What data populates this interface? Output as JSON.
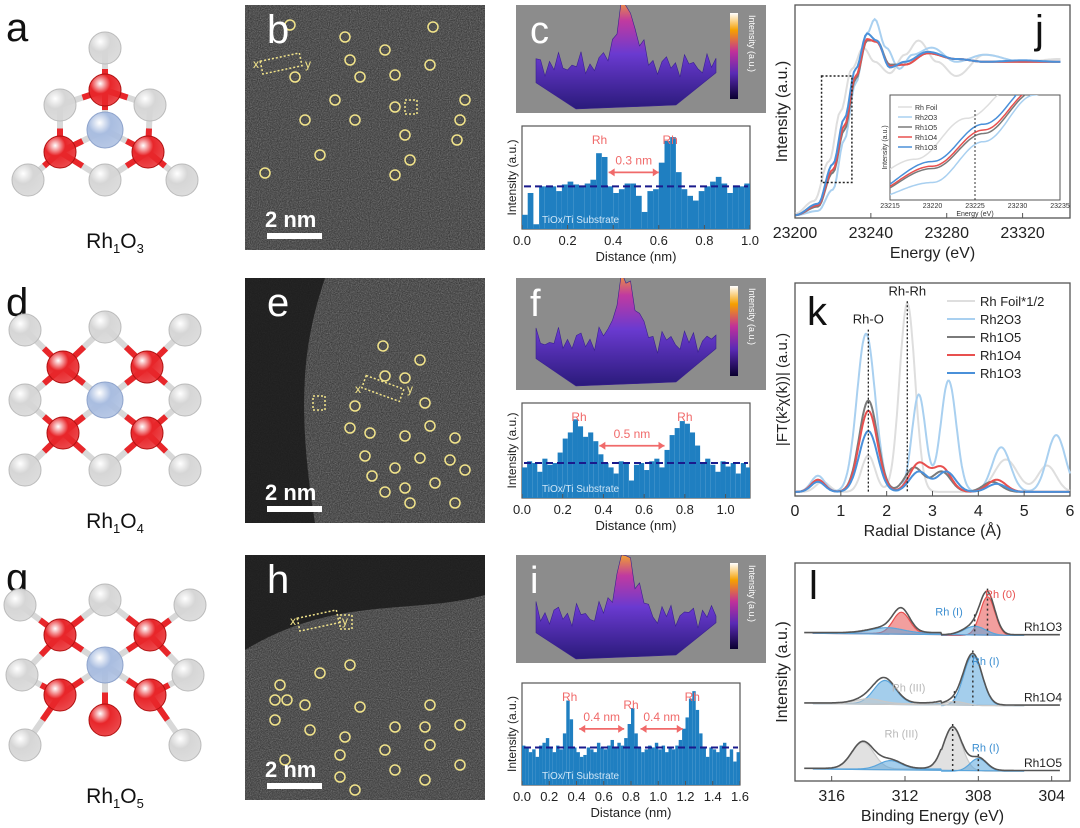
{
  "panel_labels": {
    "a": "a",
    "b": "b",
    "c": "c",
    "d": "d",
    "e": "e",
    "f": "f",
    "g": "g",
    "h": "h",
    "i": "i",
    "j": "j",
    "k": "k",
    "l": "l"
  },
  "structures": [
    {
      "formula_main": "Rh",
      "sub1": "1",
      "mid": "O",
      "sub2": "3"
    },
    {
      "formula_main": "Rh",
      "sub1": "1",
      "mid": "O",
      "sub2": "4"
    },
    {
      "formula_main": "Rh",
      "sub1": "1",
      "mid": "O",
      "sub2": "5"
    }
  ],
  "colors": {
    "rh_atom": "#a9bde0",
    "o_atom": "#e8262a",
    "support_atom": "#d6d6d6",
    "bar": "#1f7fc1",
    "substrate_line": "#1a1a8c",
    "annotation": "#f06a6a",
    "rh1o3": "#4a90d9",
    "rh1o4": "#e8504f",
    "rh1o5": "#7a7a7a",
    "rh2o3": "#a9d0f0",
    "rh_foil": "#dedede"
  },
  "stem_images": {
    "scale_bar_label": "2 nm",
    "line_marker_x": "x",
    "line_marker_y": "y"
  },
  "surface_plot": {
    "colorbar_label": "Intensity (a.u.)"
  },
  "chart_data": [
    {
      "id": "c",
      "type": "bar",
      "xlabel": "Distance (nm)",
      "ylabel": "Intensity (a.u.)",
      "xlim": [
        0,
        1.0
      ],
      "xticks": [
        "0.0",
        "0.2",
        "0.4",
        "0.6",
        "0.8",
        "1.0"
      ],
      "bin_width": 0.025,
      "values": [
        0.15,
        0.38,
        0.05,
        0.45,
        0.45,
        0.45,
        0.4,
        0.47,
        0.5,
        0.47,
        0.45,
        0.48,
        0.52,
        0.8,
        0.76,
        0.45,
        0.38,
        0.42,
        0.48,
        0.48,
        0.35,
        0.18,
        0.4,
        0.42,
        0.7,
        0.93,
        0.97,
        0.6,
        0.42,
        0.35,
        0.3,
        0.4,
        0.45,
        0.5,
        0.55,
        0.48,
        0.38,
        0.46,
        0.45,
        0.48
      ],
      "substrate_level": 0.45,
      "substrate_label": "TiOx/Ti Substrate",
      "peak_label": "Rh",
      "peaks": [
        0.34,
        0.65
      ],
      "distances": [
        {
          "from": 0.38,
          "to": 0.6,
          "label": "0.3 nm"
        }
      ]
    },
    {
      "id": "f",
      "type": "bar",
      "xlabel": "Distance (nm)",
      "ylabel": "Intensity (a.u.)",
      "xlim": [
        0,
        1.12
      ],
      "xticks": [
        "0.0",
        "0.2",
        "0.4",
        "0.6",
        "0.8",
        "1.0"
      ],
      "bin_width": 0.025,
      "values": [
        0.35,
        0.42,
        0.4,
        0.3,
        0.45,
        0.38,
        0.4,
        0.52,
        0.68,
        0.75,
        0.9,
        0.82,
        0.7,
        0.75,
        0.65,
        0.5,
        0.4,
        0.35,
        0.28,
        0.42,
        0.4,
        0.2,
        0.38,
        0.4,
        0.32,
        0.42,
        0.45,
        0.35,
        0.55,
        0.72,
        0.8,
        0.88,
        0.85,
        0.75,
        0.6,
        0.4,
        0.45,
        0.38,
        0.3,
        0.42,
        0.36,
        0.4,
        0.28,
        0.4,
        0.35
      ],
      "substrate_level": 0.4,
      "substrate_label": "TiOx/Ti Substrate",
      "peak_label": "Rh",
      "peaks": [
        0.28,
        0.8
      ],
      "distances": [
        {
          "from": 0.38,
          "to": 0.7,
          "label": "0.5 nm"
        }
      ]
    },
    {
      "id": "i",
      "type": "bar",
      "xlabel": "Distance (nm)",
      "ylabel": "Intensity (a.u.)",
      "xlim": [
        0,
        1.6
      ],
      "xticks": [
        "0.0",
        "0.2",
        "0.4",
        "0.6",
        "0.8",
        "1.0",
        "1.2",
        "1.4",
        "1.6"
      ],
      "bin_width": 0.025,
      "values": [
        0.42,
        0.4,
        0.35,
        0.38,
        0.3,
        0.42,
        0.45,
        0.5,
        0.4,
        0.35,
        0.42,
        0.38,
        0.55,
        0.9,
        0.7,
        0.4,
        0.35,
        0.3,
        0.32,
        0.4,
        0.38,
        0.35,
        0.45,
        0.4,
        0.38,
        0.42,
        0.48,
        0.4,
        0.45,
        0.42,
        0.5,
        0.65,
        0.82,
        0.55,
        0.4,
        0.35,
        0.38,
        0.42,
        0.4,
        0.45,
        0.38,
        0.42,
        0.35,
        0.4,
        0.38,
        0.42,
        0.48,
        0.6,
        0.72,
        0.92,
        1.0,
        0.8,
        0.55,
        0.4,
        0.3,
        0.4,
        0.38,
        0.35,
        0.42,
        0.45,
        0.3,
        0.38,
        0.25,
        0.35
      ],
      "substrate_level": 0.4,
      "substrate_label": "TiOx/Ti Substrate",
      "peak_label": "Rh",
      "peaks": [
        0.35,
        0.8,
        1.25
      ],
      "distances": [
        {
          "from": 0.42,
          "to": 0.75,
          "label": "0.4 nm"
        },
        {
          "from": 0.87,
          "to": 1.18,
          "label": "0.4 nm"
        }
      ]
    },
    {
      "id": "j",
      "type": "line",
      "xlabel": "Energy (eV)",
      "ylabel": "Intensity (a.u.)",
      "xlim": [
        23200,
        23345
      ],
      "ylim": [
        0,
        1.5
      ],
      "xticks": [
        23200,
        23240,
        23280,
        23320
      ],
      "series": [
        {
          "name": "Rh Foil",
          "color": "#dedede",
          "points": [
            [
              23200,
              0.03
            ],
            [
              23210,
              0.12
            ],
            [
              23218,
              0.4
            ],
            [
              23224,
              0.75
            ],
            [
              23230,
              1.05
            ],
            [
              23236,
              1.2
            ],
            [
              23242,
              1.1
            ],
            [
              23250,
              1.02
            ],
            [
              23258,
              1.15
            ],
            [
              23265,
              1.25
            ],
            [
              23275,
              1.1
            ],
            [
              23285,
              1.0
            ],
            [
              23300,
              1.15
            ],
            [
              23320,
              1.1
            ],
            [
              23340,
              1.12
            ]
          ]
        },
        {
          "name": "Rh2O3",
          "color": "#a9d0f0",
          "points": [
            [
              23200,
              0.02
            ],
            [
              23212,
              0.05
            ],
            [
              23220,
              0.2
            ],
            [
              23226,
              0.55
            ],
            [
              23232,
              0.95
            ],
            [
              23238,
              1.3
            ],
            [
              23242,
              1.4
            ],
            [
              23248,
              1.2
            ],
            [
              23255,
              1.05
            ],
            [
              23262,
              1.15
            ],
            [
              23272,
              1.2
            ],
            [
              23285,
              1.1
            ],
            [
              23300,
              1.15
            ],
            [
              23320,
              1.1
            ],
            [
              23340,
              1.1
            ]
          ]
        },
        {
          "name": "Rh1O5",
          "color": "#7a7a7a",
          "points": [
            [
              23200,
              0.02
            ],
            [
              23212,
              0.08
            ],
            [
              23220,
              0.32
            ],
            [
              23226,
              0.62
            ],
            [
              23232,
              0.98
            ],
            [
              23238,
              1.25
            ],
            [
              23243,
              1.25
            ],
            [
              23250,
              1.08
            ],
            [
              23258,
              1.08
            ],
            [
              23270,
              1.16
            ],
            [
              23285,
              1.12
            ],
            [
              23300,
              1.1
            ],
            [
              23320,
              1.1
            ],
            [
              23340,
              1.1
            ]
          ]
        },
        {
          "name": "Rh1O4",
          "color": "#e8504f",
          "points": [
            [
              23200,
              0.02
            ],
            [
              23212,
              0.09
            ],
            [
              23220,
              0.34
            ],
            [
              23226,
              0.65
            ],
            [
              23232,
              1.0
            ],
            [
              23238,
              1.26
            ],
            [
              23243,
              1.24
            ],
            [
              23250,
              1.07
            ],
            [
              23258,
              1.08
            ],
            [
              23270,
              1.16
            ],
            [
              23285,
              1.12
            ],
            [
              23300,
              1.1
            ],
            [
              23320,
              1.1
            ],
            [
              23340,
              1.1
            ]
          ]
        },
        {
          "name": "Rh1O3",
          "color": "#4a90d9",
          "points": [
            [
              23200,
              0.02
            ],
            [
              23212,
              0.1
            ],
            [
              23220,
              0.38
            ],
            [
              23226,
              0.7
            ],
            [
              23232,
              1.05
            ],
            [
              23238,
              1.3
            ],
            [
              23243,
              1.25
            ],
            [
              23250,
              1.06
            ],
            [
              23258,
              1.1
            ],
            [
              23270,
              1.17
            ],
            [
              23285,
              1.12
            ],
            [
              23300,
              1.1
            ],
            [
              23320,
              1.11
            ],
            [
              23340,
              1.1
            ]
          ]
        }
      ],
      "inset": {
        "xlabel": "Energy (eV)",
        "ylabel": "Intensity (a.u.)",
        "xlim": [
          23215,
          23235
        ],
        "ylim": [
          0.05,
          0.95
        ],
        "xticks": [
          23215,
          23220,
          23225,
          23230,
          23235
        ],
        "marker_x": 23225
      }
    },
    {
      "id": "k",
      "type": "line",
      "xlabel": "Radial Distance (Å)",
      "ylabel": "|FT(k²χ(k))| (a.u.)",
      "xlim": [
        0,
        6
      ],
      "ylim": [
        0,
        1.05
      ],
      "xticks": [
        0,
        1,
        2,
        3,
        4,
        5,
        6
      ],
      "annotations": [
        {
          "label": "Rh-O",
          "x": 1.6
        },
        {
          "label": "Rh-Rh",
          "x": 2.45
        }
      ],
      "series": [
        {
          "name": "Rh Foil*1/2",
          "color": "#dedede",
          "peaks": [
            [
              2.45,
              0.93,
              0.17
            ],
            [
              1.6,
              0.18,
              0.15
            ],
            [
              0.6,
              0.05,
              0.15
            ],
            [
              4.6,
              0.16,
              0.25
            ],
            [
              5.5,
              0.13,
              0.2
            ]
          ]
        },
        {
          "name": "Rh2O3",
          "color": "#a9d0f0",
          "peaks": [
            [
              1.55,
              0.78,
              0.2
            ],
            [
              0.5,
              0.08,
              0.15
            ],
            [
              2.7,
              0.48,
              0.15
            ],
            [
              3.35,
              0.55,
              0.17
            ],
            [
              4.5,
              0.22,
              0.2
            ],
            [
              5.7,
              0.28,
              0.2
            ]
          ]
        },
        {
          "name": "Rh1O5",
          "color": "#7a7a7a",
          "peaks": [
            [
              1.6,
              0.45,
              0.2
            ],
            [
              0.5,
              0.06,
              0.15
            ],
            [
              2.6,
              0.12,
              0.2
            ],
            [
              3.2,
              0.1,
              0.2
            ],
            [
              4.3,
              0.05,
              0.2
            ]
          ]
        },
        {
          "name": "Rh1O4",
          "color": "#e8504f",
          "peaks": [
            [
              1.6,
              0.4,
              0.2
            ],
            [
              0.5,
              0.06,
              0.15
            ],
            [
              2.7,
              0.14,
              0.2
            ],
            [
              3.2,
              0.12,
              0.2
            ],
            [
              4.4,
              0.06,
              0.2
            ]
          ]
        },
        {
          "name": "Rh1O3",
          "color": "#4a90d9",
          "peaks": [
            [
              1.6,
              0.3,
              0.2
            ],
            [
              0.5,
              0.05,
              0.15
            ],
            [
              2.7,
              0.1,
              0.2
            ],
            [
              3.3,
              0.1,
              0.2
            ],
            [
              4.4,
              0.04,
              0.2
            ]
          ]
        }
      ]
    },
    {
      "id": "l",
      "type": "area",
      "xlabel": "Binding Energy (eV)",
      "ylabel": "Intensity (a.u.)",
      "xlim": [
        318,
        303
      ],
      "ylim": [
        0,
        3.1
      ],
      "xticks": [
        316,
        312,
        308,
        304
      ],
      "spectra": [
        {
          "name": "Rh1O3",
          "offset": 2.05,
          "components": [
            {
              "state": "Rh (0)",
              "color": "#e8504f",
              "peaks": [
                [
                  307.5,
                  0.55,
                  0.4
                ],
                [
                  312.2,
                  0.3,
                  0.45
                ]
              ]
            },
            {
              "state": "Rh (I)",
              "color": "#5aa5dc",
              "peaks": [
                [
                  308.2,
                  0.13,
                  0.6
                ],
                [
                  313,
                  0.08,
                  0.9
                ]
              ]
            }
          ],
          "labels": [
            {
              "text": "Rh (0)",
              "x": 306.8,
              "color": "#e8504f"
            },
            {
              "text": "Rh (I)",
              "x": 309.6,
              "color": "#3d8fd1"
            }
          ]
        },
        {
          "name": "Rh1O4",
          "offset": 1.05,
          "components": [
            {
              "state": "Rh (I)",
              "color": "#5aa5dc",
              "peaks": [
                [
                  308.3,
                  0.72,
                  0.5
                ],
                [
                  313.1,
                  0.33,
                  0.6
                ]
              ]
            },
            {
              "state": "Rh (III)",
              "color": "#c8c8c8",
              "peaks": [
                [
                  309.3,
                  0.06,
                  0.6
                ],
                [
                  314,
                  0.07,
                  0.7
                ]
              ]
            }
          ],
          "labels": [
            {
              "text": "Rh (I)",
              "x": 307.6,
              "color": "#3d8fd1"
            },
            {
              "text": "Rh (III)",
              "x": 311.8,
              "color": "#b8b8b8"
            }
          ]
        },
        {
          "name": "Rh1O5",
          "offset": 0.12,
          "components": [
            {
              "state": "Rh (III)",
              "color": "#c8c8c8",
              "peaks": [
                [
                  309.4,
                  0.62,
                  0.5
                ],
                [
                  314.3,
                  0.38,
                  0.6
                ]
              ]
            },
            {
              "state": "Rh (I)",
              "color": "#5aa5dc",
              "peaks": [
                [
                  308,
                  0.18,
                  0.45
                ],
                [
                  312.8,
                  0.12,
                  0.6
                ]
              ]
            }
          ],
          "labels": [
            {
              "text": "Rh (III)",
              "x": 312.2,
              "color": "#b8b8b8"
            },
            {
              "text": "Rh (I)",
              "x": 307.6,
              "color": "#3d8fd1"
            }
          ]
        }
      ]
    }
  ]
}
